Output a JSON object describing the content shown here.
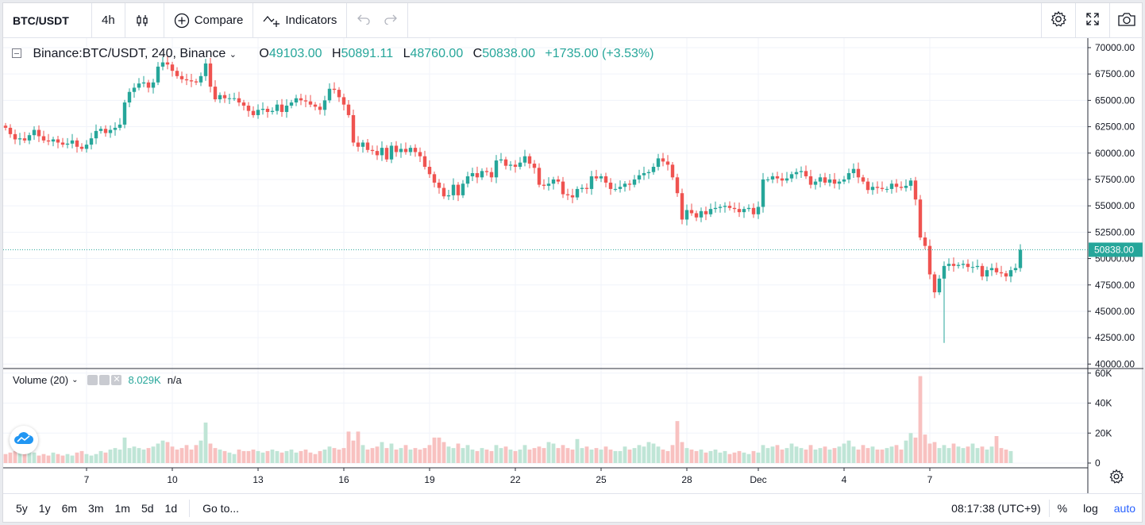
{
  "toolbar": {
    "symbol": "BTC/USDT",
    "interval": "4h",
    "compare_label": "Compare",
    "indicators_label": "Indicators"
  },
  "legend": {
    "symbol_full": "Binance:BTC/USDT, 240, Binance",
    "o_label": "O",
    "o_value": "49103.00",
    "h_label": "H",
    "h_value": "50891.11",
    "l_label": "L",
    "l_value": "48760.00",
    "c_label": "C",
    "c_value": "50838.00",
    "change": "+1735.00 (+3.53%)"
  },
  "volume_legend": {
    "label": "Volume (20)",
    "value": "8.029K",
    "ma_value": "n/a"
  },
  "bottom": {
    "ranges": [
      "5y",
      "1y",
      "6m",
      "3m",
      "1m",
      "5d",
      "1d"
    ],
    "goto": "Go to...",
    "time": "08:17:38 (UTC+9)",
    "percent": "%",
    "log": "log",
    "auto": "auto"
  },
  "colors": {
    "up": "#26a69a",
    "down": "#ef5350",
    "up_vol": "#bfe5d6",
    "down_vol": "#f8c1c0",
    "last_price": "#26a69a"
  },
  "chart_data": {
    "type": "candlestick",
    "last_price_label": "50838.00",
    "price_axis": {
      "ticks": [
        70000,
        67500,
        65000,
        62500,
        60000,
        57500,
        55000,
        52500,
        50000,
        47500,
        45000,
        42500,
        40000
      ],
      "tick_labels": [
        "70000.00",
        "67500.00",
        "65000.00",
        "62500.00",
        "60000.00",
        "57500.00",
        "55000.00",
        "52500.00",
        "50000.00",
        "47500.00",
        "45000.00",
        "42500.00",
        "40000.00"
      ],
      "range": [
        39800,
        70600
      ]
    },
    "volume_axis": {
      "ticks": [
        60000,
        40000,
        20000,
        0
      ],
      "tick_labels": [
        "60K",
        "40K",
        "20K",
        "0"
      ],
      "range": [
        0,
        62000
      ]
    },
    "time_axis": {
      "tick_labels": [
        "7",
        "10",
        "13",
        "16",
        "19",
        "22",
        "25",
        "28",
        "Dec",
        "4",
        "7"
      ],
      "tick_index": [
        17,
        35,
        53,
        71,
        89,
        107,
        125,
        143,
        158,
        176,
        194
      ]
    },
    "closes": [
      62400,
      61800,
      61300,
      61400,
      61200,
      61700,
      62200,
      61600,
      61200,
      61100,
      61300,
      61000,
      60800,
      60900,
      61200,
      60600,
      60400,
      60800,
      61400,
      62100,
      62300,
      61900,
      62200,
      62400,
      62700,
      64800,
      65800,
      66200,
      66600,
      66700,
      66200,
      66700,
      68200,
      68600,
      68400,
      67800,
      67300,
      67000,
      66900,
      66800,
      66700,
      67300,
      68500,
      66300,
      65100,
      65500,
      65200,
      65200,
      65200,
      64800,
      64500,
      64000,
      63600,
      64100,
      64200,
      63900,
      64000,
      64600,
      63900,
      64500,
      64800,
      65200,
      65000,
      64900,
      64600,
      64400,
      64100,
      65000,
      66100,
      66000,
      65300,
      64600,
      63600,
      61000,
      60600,
      61000,
      60300,
      60200,
      59800,
      60500,
      59400,
      60700,
      60100,
      60400,
      60100,
      60500,
      60100,
      59700,
      58700,
      58000,
      57200,
      56700,
      55900,
      56000,
      57000,
      56000,
      57100,
      57800,
      58100,
      57700,
      58300,
      58200,
      57700,
      59300,
      59400,
      58800,
      58900,
      58700,
      59100,
      59700,
      59000,
      58600,
      57000,
      56900,
      57100,
      57500,
      57300,
      56100,
      56000,
      55800,
      56600,
      56700,
      56600,
      57800,
      57600,
      57800,
      57200,
      56600,
      56600,
      56800,
      57100,
      57000,
      57500,
      57900,
      58100,
      58200,
      58700,
      59500,
      59200,
      58900,
      57700,
      56200,
      53700,
      54600,
      54300,
      53900,
      54500,
      54200,
      54700,
      54800,
      54900,
      55000,
      54800,
      54700,
      54400,
      54700,
      54800,
      54200,
      54900,
      57500,
      57500,
      57800,
      57600,
      57400,
      57600,
      58000,
      58200,
      58300,
      57800,
      57000,
      57300,
      57700,
      57200,
      57500,
      57100,
      57300,
      57500,
      58100,
      58500,
      57700,
      57300,
      56500,
      56800,
      56700,
      56600,
      56600,
      57100,
      56800,
      56700,
      56900,
      57400,
      55600,
      52000,
      51200,
      48500,
      46800,
      48100,
      49300,
      49500,
      49300,
      49400,
      49500,
      49200,
      49200,
      49300,
      48300,
      48900,
      49100,
      48700,
      48600,
      48300,
      48900,
      49100,
      50838
    ],
    "volumes": [
      6000,
      7000,
      8000,
      7000,
      6500,
      9000,
      7000,
      5000,
      6000,
      5000,
      7000,
      6000,
      5000,
      6000,
      5000,
      7000,
      8000,
      6000,
      5000,
      6000,
      8000,
      7000,
      9000,
      10000,
      9000,
      17000,
      10000,
      11000,
      10000,
      9000,
      10000,
      11000,
      13000,
      15000,
      14000,
      11000,
      9000,
      10000,
      12000,
      9000,
      12000,
      15000,
      27000,
      13000,
      10000,
      9000,
      8000,
      7000,
      6000,
      9000,
      8000,
      8000,
      9000,
      8000,
      7000,
      8000,
      9000,
      8000,
      7000,
      8000,
      9000,
      7000,
      8000,
      9000,
      7000,
      6000,
      8000,
      9000,
      11000,
      10000,
      9000,
      10000,
      21000,
      15000,
      21000,
      12000,
      9000,
      10000,
      11000,
      14000,
      10000,
      13000,
      9000,
      10000,
      12000,
      9000,
      10000,
      9000,
      10000,
      12000,
      17000,
      17000,
      14000,
      11000,
      10000,
      13000,
      10000,
      12000,
      9000,
      8000,
      10000,
      9000,
      8000,
      12000,
      10000,
      11000,
      9000,
      8000,
      9000,
      12000,
      9000,
      10000,
      11000,
      10000,
      14000,
      13000,
      10000,
      12000,
      10000,
      9000,
      16000,
      10000,
      11000,
      9000,
      10000,
      9000,
      11000,
      9000,
      8000,
      8000,
      11000,
      9000,
      10000,
      12000,
      11000,
      14000,
      13000,
      11000,
      9000,
      8000,
      12000,
      28000,
      14000,
      10000,
      9000,
      8000,
      9000,
      7000,
      8000,
      9000,
      7000,
      8000,
      6000,
      7000,
      8000,
      7000,
      6000,
      8000,
      7000,
      12000,
      10000,
      11000,
      12000,
      9000,
      10000,
      13000,
      11000,
      10000,
      9000,
      12000,
      9000,
      10000,
      11000,
      9000,
      10000,
      11000,
      13000,
      15000,
      11000,
      9000,
      12000,
      10000,
      11000,
      9000,
      9000,
      10000,
      11000,
      12000,
      9000,
      15000,
      20000,
      17000,
      58000,
      19000,
      13000,
      14000,
      10000,
      12000,
      10000,
      13000,
      11000,
      10000,
      11000,
      13000,
      10000,
      11000,
      9000,
      11000,
      18000,
      10000,
      9000,
      8000
    ]
  }
}
